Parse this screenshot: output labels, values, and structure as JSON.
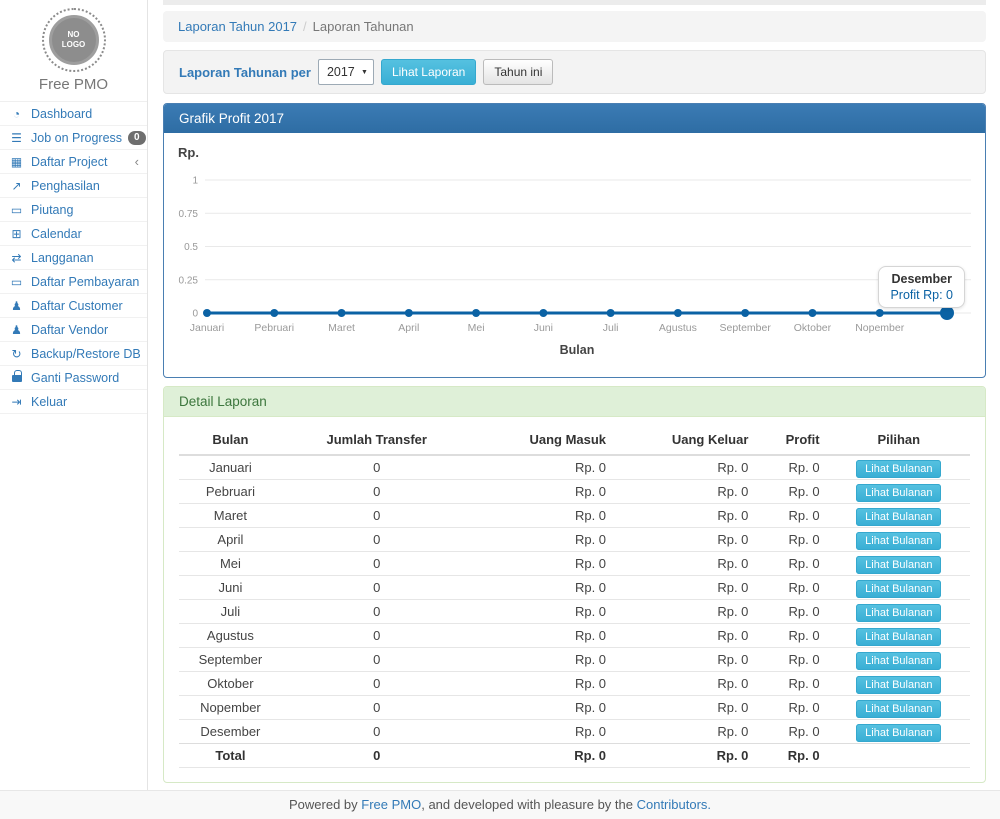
{
  "brand": {
    "logo_line1": "NO",
    "logo_line2": "LOGO",
    "name": "Free PMO"
  },
  "sidebar": {
    "items": [
      {
        "icon": "tachometer",
        "label": "Dashboard"
      },
      {
        "icon": "tasks",
        "label": "Job on Progress",
        "badge": "0"
      },
      {
        "icon": "table",
        "label": "Daftar Project",
        "chevron": "‹"
      },
      {
        "icon": "line-chart",
        "label": "Penghasilan"
      },
      {
        "icon": "money",
        "label": "Piutang"
      },
      {
        "icon": "calendar",
        "label": "Calendar"
      },
      {
        "icon": "retweet",
        "label": "Langganan"
      },
      {
        "icon": "money",
        "label": "Daftar Pembayaran"
      },
      {
        "icon": "users",
        "label": "Daftar Customer"
      },
      {
        "icon": "users",
        "label": "Daftar Vendor"
      },
      {
        "icon": "refresh",
        "label": "Backup/Restore DB"
      },
      {
        "icon": "lock",
        "label": "Ganti Password"
      },
      {
        "icon": "sign-out",
        "label": "Keluar"
      }
    ]
  },
  "breadcrumb": {
    "link": "Laporan Tahun 2017",
    "separator": "/",
    "current": "Laporan Tahunan"
  },
  "filter": {
    "label": "Laporan Tahunan per",
    "year_value": "2017",
    "view_button": "Lihat Laporan",
    "this_year_button": "Tahun ini"
  },
  "chart_panel": {
    "title": "Grafik Profit 2017",
    "y_unit_label": "Rp."
  },
  "chart_data": {
    "type": "line",
    "title": "Grafik Profit 2017",
    "x": [
      "Januari",
      "Pebruari",
      "Maret",
      "April",
      "Mei",
      "Juni",
      "Juli",
      "Agustus",
      "September",
      "Oktober",
      "Nopember",
      "Desember"
    ],
    "series": [
      {
        "name": "Profit",
        "values": [
          0,
          0,
          0,
          0,
          0,
          0,
          0,
          0,
          0,
          0,
          0,
          0
        ]
      }
    ],
    "xlabel": "Bulan",
    "ylabel": "Rp.",
    "ylim": [
      0,
      1
    ],
    "yticks": [
      0,
      0.25,
      0.5,
      0.75,
      1
    ],
    "grid": true,
    "legend": "none",
    "line_color": "#0b62a4",
    "hover": {
      "title": "Desember",
      "text": "Profit Rp: 0"
    }
  },
  "table_panel": {
    "title": "Detail Laporan",
    "columns": [
      "Bulan",
      "Jumlah Transfer",
      "Uang Masuk",
      "Uang Keluar",
      "Profit",
      "Pilihan"
    ],
    "action_label": "Lihat Bulanan",
    "rows": [
      [
        "Januari",
        "0",
        "Rp. 0",
        "Rp. 0",
        "Rp. 0"
      ],
      [
        "Pebruari",
        "0",
        "Rp. 0",
        "Rp. 0",
        "Rp. 0"
      ],
      [
        "Maret",
        "0",
        "Rp. 0",
        "Rp. 0",
        "Rp. 0"
      ],
      [
        "April",
        "0",
        "Rp. 0",
        "Rp. 0",
        "Rp. 0"
      ],
      [
        "Mei",
        "0",
        "Rp. 0",
        "Rp. 0",
        "Rp. 0"
      ],
      [
        "Juni",
        "0",
        "Rp. 0",
        "Rp. 0",
        "Rp. 0"
      ],
      [
        "Juli",
        "0",
        "Rp. 0",
        "Rp. 0",
        "Rp. 0"
      ],
      [
        "Agustus",
        "0",
        "Rp. 0",
        "Rp. 0",
        "Rp. 0"
      ],
      [
        "September",
        "0",
        "Rp. 0",
        "Rp. 0",
        "Rp. 0"
      ],
      [
        "Oktober",
        "0",
        "Rp. 0",
        "Rp. 0",
        "Rp. 0"
      ],
      [
        "Nopember",
        "0",
        "Rp. 0",
        "Rp. 0",
        "Rp. 0"
      ],
      [
        "Desember",
        "0",
        "Rp. 0",
        "Rp. 0",
        "Rp. 0"
      ]
    ],
    "total_row": [
      "Total",
      "0",
      "Rp. 0",
      "Rp. 0",
      "Rp. 0"
    ]
  },
  "footer": {
    "text_before": "Powered by ",
    "link_app": "Free PMO",
    "text_middle": ", and developed with pleasure by the ",
    "link_contributors": "Contributors."
  },
  "colors": {
    "link_blue": "#337ab7",
    "panel_heading_blue": "#2e6da4",
    "panel_border_blue": "#4a7fb2",
    "success_bg": "#dff0d8",
    "success_border": "#d6e9c6",
    "success_text": "#3c763d",
    "info_button": "#46b8da",
    "chart_line": "#0b62a4",
    "badge_gray": "#6e6e6e"
  }
}
